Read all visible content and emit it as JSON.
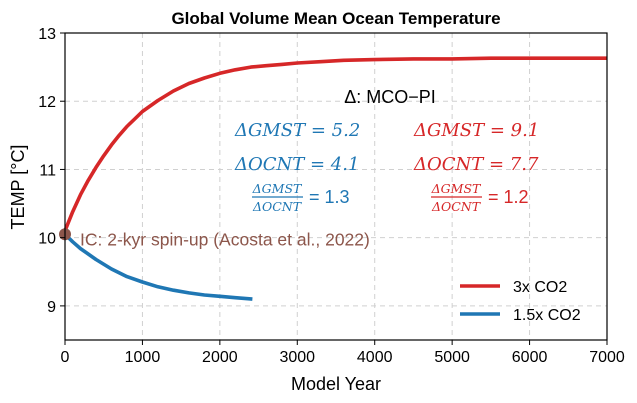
{
  "chart_data": {
    "type": "line",
    "title": "Global Volume Mean Ocean Temperature",
    "xlabel": "Model Year",
    "ylabel": "TEMP [°C]",
    "xlim": [
      0,
      7000
    ],
    "ylim": [
      8.5,
      13
    ],
    "x_ticks": [
      0,
      1000,
      2000,
      3000,
      4000,
      5000,
      6000,
      7000
    ],
    "y_ticks": [
      9,
      10,
      11,
      12,
      13
    ],
    "x_tick_labels": [
      "0",
      "1000",
      "2000",
      "3000",
      "4000",
      "5000",
      "6000",
      "7000"
    ],
    "y_tick_labels": [
      "9",
      "10",
      "11",
      "12",
      "13"
    ],
    "grid": true,
    "legend_position": "lower-right",
    "series": [
      {
        "name": "3x CO2",
        "color": "#d62728",
        "x": [
          0,
          100,
          200,
          300,
          400,
          500,
          600,
          700,
          800,
          900,
          1000,
          1200,
          1400,
          1600,
          1800,
          2000,
          2200,
          2400,
          2600,
          2800,
          3000,
          3300,
          3600,
          4000,
          4500,
          5000,
          5500,
          6000,
          6500,
          7000
        ],
        "y": [
          10.1,
          10.38,
          10.63,
          10.84,
          11.03,
          11.2,
          11.36,
          11.5,
          11.63,
          11.74,
          11.85,
          12.01,
          12.15,
          12.26,
          12.34,
          12.41,
          12.46,
          12.5,
          12.52,
          12.54,
          12.56,
          12.58,
          12.6,
          12.61,
          12.62,
          12.62,
          12.63,
          12.63,
          12.63,
          12.63
        ]
      },
      {
        "name": "1.5x CO2",
        "color": "#1f77b4",
        "x": [
          0,
          100,
          200,
          300,
          400,
          600,
          800,
          1000,
          1200,
          1400,
          1600,
          1800,
          2000,
          2200,
          2420
        ],
        "y": [
          10.05,
          9.94,
          9.84,
          9.76,
          9.68,
          9.54,
          9.43,
          9.35,
          9.28,
          9.23,
          9.19,
          9.16,
          9.14,
          9.12,
          9.1
        ]
      }
    ],
    "initial_condition": {
      "x": 0,
      "y": 10.05,
      "color": "#8c564b",
      "label": "IC: 2-kyr spin-up (Acosta et al., 2022)"
    },
    "annotations": {
      "header": "Δ: MCO−PI",
      "left_column": {
        "color": "#1f77b4",
        "gmst": "ΔGMST = 5.2",
        "ocnt": "ΔOCNT = 4.1",
        "ratio_num": "ΔGMST",
        "ratio_den": "ΔOCNT",
        "ratio_value": "= 1.3"
      },
      "right_column": {
        "color": "#d62728",
        "gmst": "ΔGMST = 9.1",
        "ocnt": "ΔOCNT = 7.7",
        "ratio_num": "ΔGMST",
        "ratio_den": "ΔOCNT",
        "ratio_value": "= 1.2"
      }
    }
  }
}
